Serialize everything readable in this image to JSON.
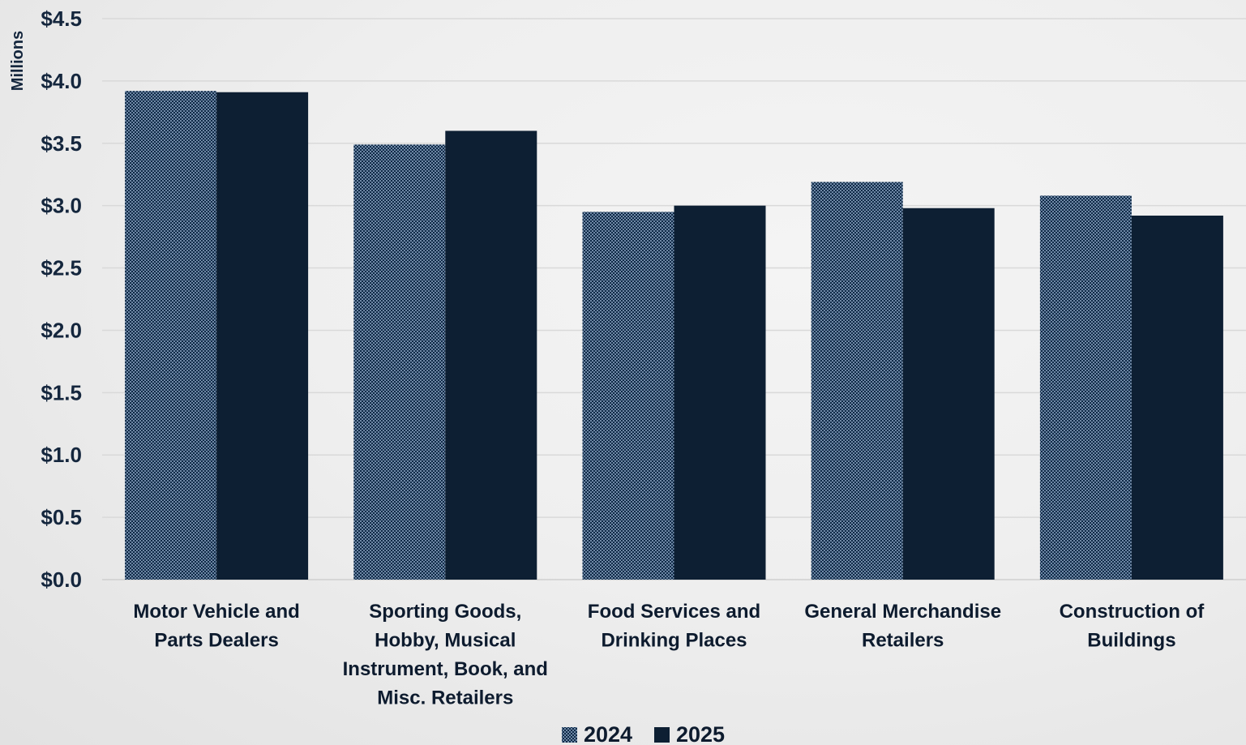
{
  "chart_data": {
    "type": "bar",
    "unit_label": "Millions",
    "ylim": [
      0,
      4.5
    ],
    "y_ticks": [
      "$0.0",
      "$0.5",
      "$1.0",
      "$1.5",
      "$2.0",
      "$2.5",
      "$3.0",
      "$3.5",
      "$4.0",
      "$4.5"
    ],
    "y_tick_values": [
      0,
      0.5,
      1.0,
      1.5,
      2.0,
      2.5,
      3.0,
      3.5,
      4.0,
      4.5
    ],
    "grid": true,
    "legend_position": "bottom",
    "categories": [
      [
        "Motor Vehicle and",
        "Parts Dealers"
      ],
      [
        "Sporting Goods,",
        "Hobby, Musical",
        "Instrument, Book, and",
        "Misc. Retailers"
      ],
      [
        "Food Services and",
        "Drinking Places"
      ],
      [
        "General Merchandise",
        "Retailers"
      ],
      [
        "Construction of",
        "Buildings"
      ]
    ],
    "series": [
      {
        "name": "2024",
        "color": "#1f3a5f",
        "pattern": "dotted",
        "values": [
          3.92,
          3.49,
          2.95,
          3.19,
          3.08
        ]
      },
      {
        "name": "2025",
        "color": "#0d1f33",
        "pattern": "solid",
        "values": [
          3.91,
          3.6,
          3.0,
          2.98,
          2.92
        ]
      }
    ]
  }
}
